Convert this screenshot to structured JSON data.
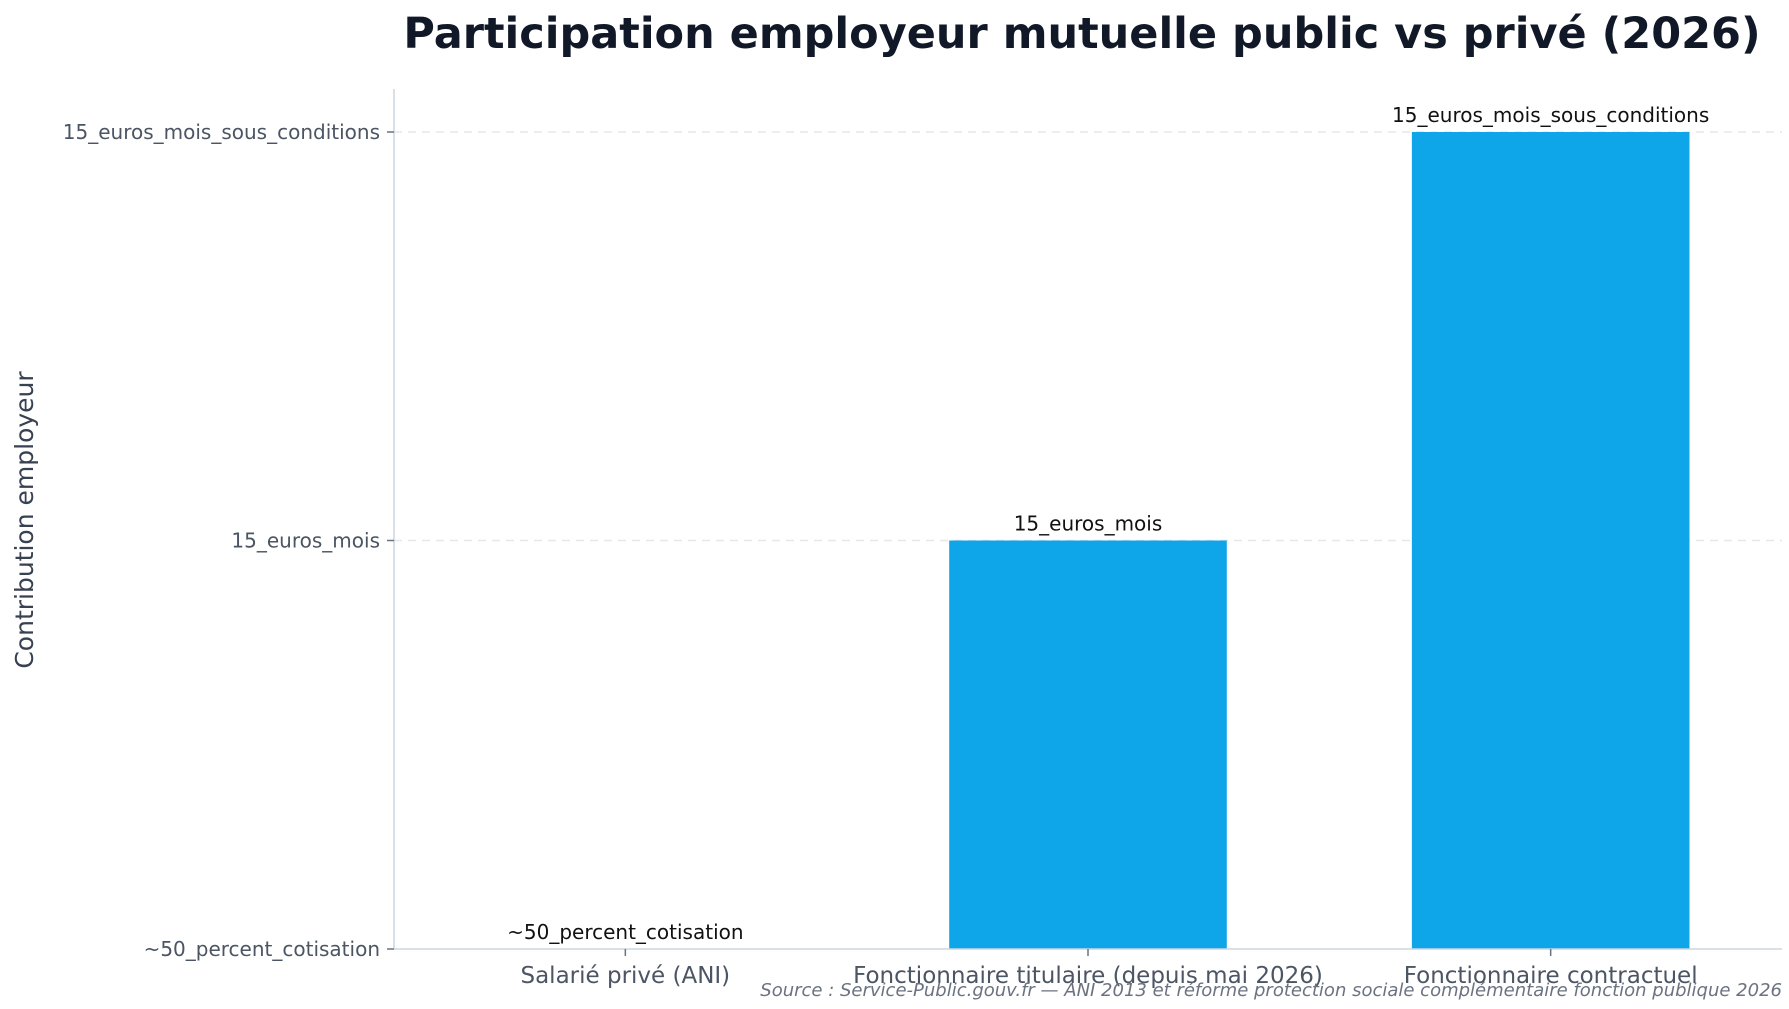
{
  "chart_data": {
    "type": "bar",
    "title": "Participation employeur mutuelle public vs privé (2026)",
    "xlabel": "",
    "ylabel": "Contribution employeur",
    "y_categories": [
      "~50_percent_cotisation",
      "15_euros_mois",
      "15_euros_mois_sous_conditions"
    ],
    "categories": [
      "Salarié privé (ANI)",
      "Fonctionnaire titulaire (depuis mai 2026)",
      "Fonctionnaire contractuel"
    ],
    "values": [
      "~50_percent_cotisation",
      "15_euros_mois",
      "15_euros_mois_sous_conditions"
    ],
    "data_labels": [
      "~50_percent_cotisation",
      "15_euros_mois",
      "15_euros_mois_sous_conditions"
    ],
    "bar_color": "#0ea5e9",
    "grid": true,
    "grid_axis": "y",
    "legend": false,
    "source": "Source : Service-Public.gouv.fr — ANI 2013 et réforme protection sociale complémentaire fonction publique 2026"
  }
}
